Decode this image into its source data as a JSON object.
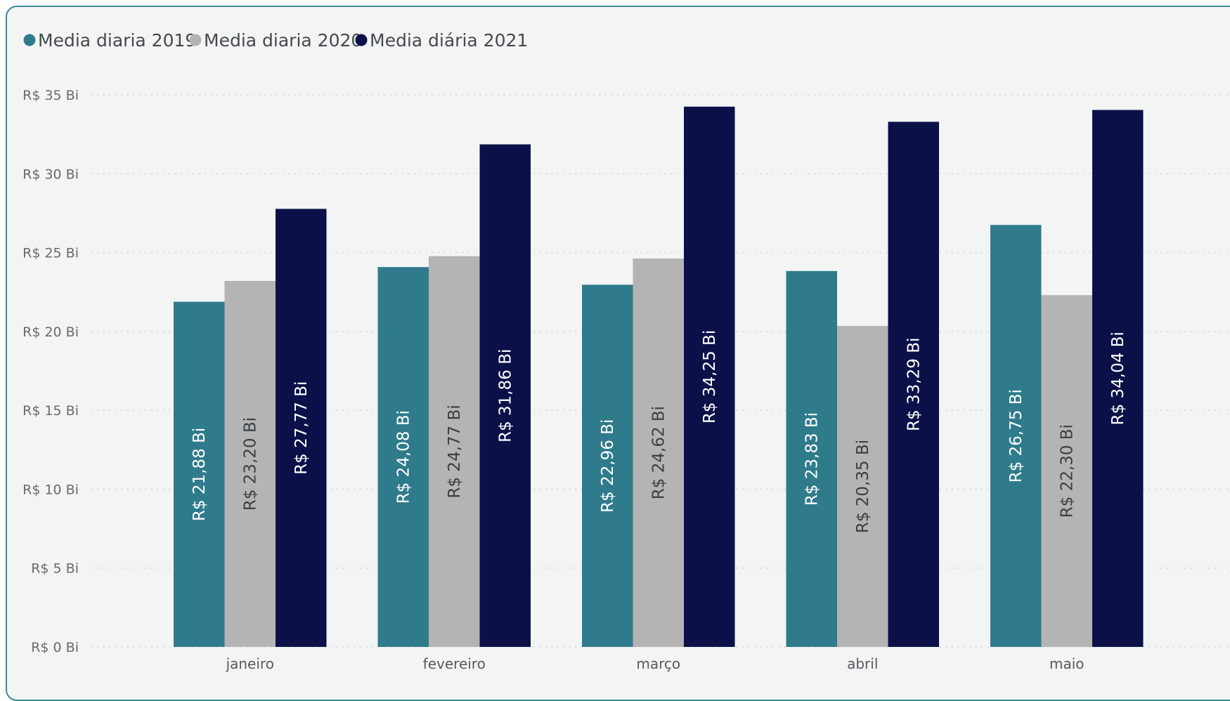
{
  "chart_data": {
    "type": "bar",
    "categories": [
      "janeiro",
      "fevereiro",
      "março",
      "abril",
      "maio"
    ],
    "series": [
      {
        "name": "Media diaria 2019",
        "color": "#2f7b8c",
        "label_color": "#ffffff",
        "values": [
          21.88,
          24.08,
          22.96,
          23.83,
          26.75
        ],
        "labels": [
          "R$ 21,88 Bi",
          "R$ 24,08 Bi",
          "R$ 22,96 Bi",
          "R$ 23,83 Bi",
          "R$ 26,75 Bi"
        ]
      },
      {
        "name": "Media diaria 2020",
        "color": "#b4b4b4",
        "label_color": "#3a3f45",
        "values": [
          23.2,
          24.77,
          24.62,
          20.35,
          22.3
        ],
        "labels": [
          "R$ 23,20 Bi",
          "R$ 24,77 Bi",
          "R$ 24,62 Bi",
          "R$ 20,35 Bi",
          "R$ 22,30 Bi"
        ]
      },
      {
        "name": "Media diária 2021",
        "color": "#0b1148",
        "label_color": "#ffffff",
        "values": [
          27.77,
          31.86,
          34.25,
          33.29,
          34.04
        ],
        "labels": [
          "R$ 27,77 Bi",
          "R$ 31,86 Bi",
          "R$ 34,25 Bi",
          "R$ 33,29 Bi",
          "R$ 34,04 Bi"
        ]
      }
    ],
    "yticks": [
      0,
      5,
      10,
      15,
      20,
      25,
      30,
      35
    ],
    "ytick_labels": [
      "R$ 0 Bi",
      "R$ 5 Bi",
      "R$ 10 Bi",
      "R$ 15 Bi",
      "R$ 20 Bi",
      "R$ 25 Bi",
      "R$ 30 Bi",
      "R$ 35 Bi"
    ],
    "ylim": [
      0,
      35
    ],
    "grid": true,
    "legend_position": "top-left",
    "title": "",
    "xlabel": "",
    "ylabel": ""
  }
}
